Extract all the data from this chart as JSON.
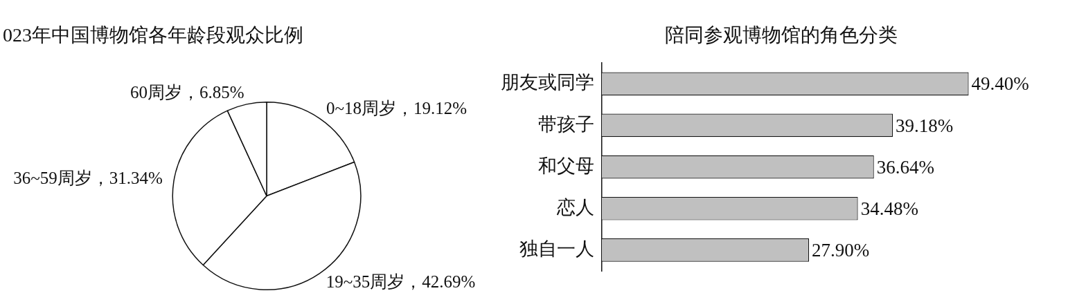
{
  "chart_data": [
    {
      "type": "pie",
      "title": "023年中国博物馆各年龄段观众比例",
      "categories": [
        "0~18周岁",
        "19~35周岁",
        "36~59周岁",
        "60周岁"
      ],
      "values": [
        19.12,
        42.69,
        31.34,
        6.85
      ],
      "value_labels": [
        "19.12%",
        "42.69%",
        "31.34%",
        "6.85%"
      ],
      "colors": [
        "#ffffff",
        "#ffffff",
        "#ffffff",
        "#ffffff"
      ]
    },
    {
      "type": "bar",
      "orientation": "horizontal",
      "title": "陪同参观博物馆的角色分类",
      "categories": [
        "朋友或同学",
        "带孩子",
        "和父母",
        "恋人",
        "独自一人"
      ],
      "values": [
        49.4,
        39.18,
        36.64,
        34.48,
        27.9
      ],
      "value_labels": [
        "49.40%",
        "39.18%",
        "36.64%",
        "34.48%",
        "27.90%"
      ],
      "color": "#c0c0c0"
    }
  ]
}
